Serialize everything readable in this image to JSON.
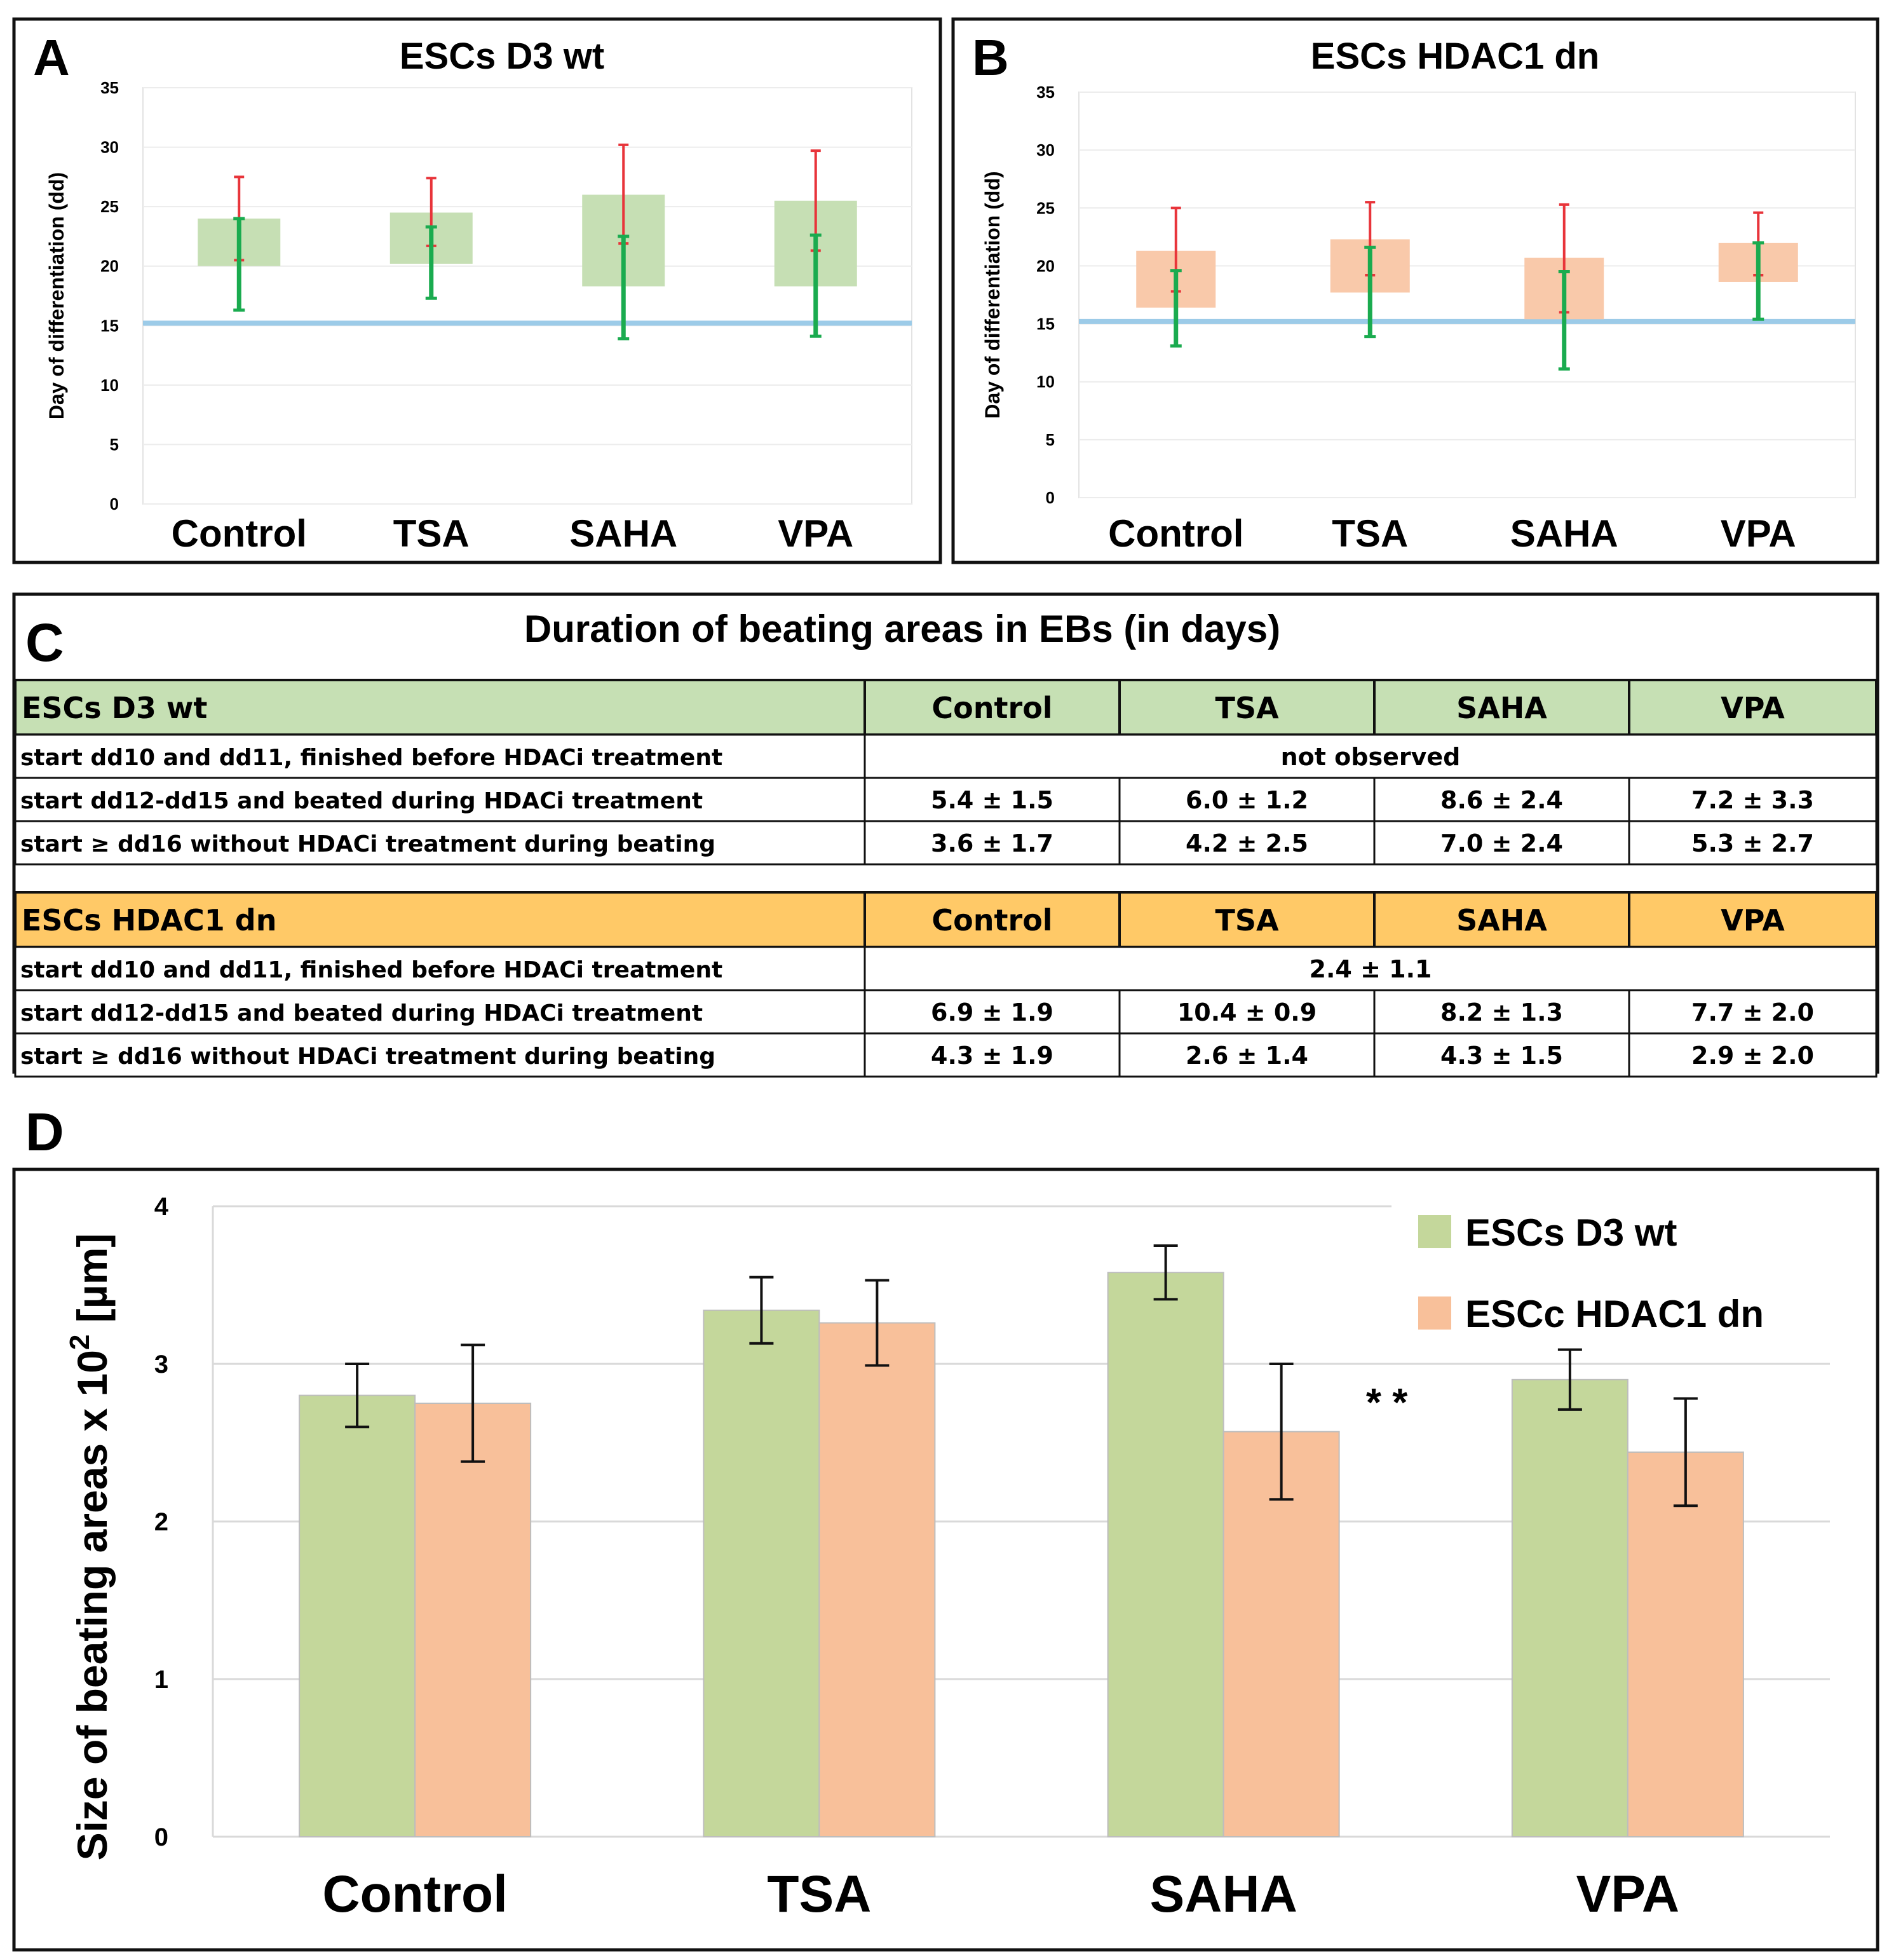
{
  "colors": {
    "wt_box": "#c6dfb4",
    "dn_box": "#f9c9aa",
    "red_bar": "#e8343a",
    "green_bar": "#1aab4f",
    "baseline": "#9ccbe8",
    "bar_wt": "#c4d79b",
    "bar_dn": "#f8c09a",
    "header_wt": "#c6e0b4",
    "header_dn": "#ffc967",
    "grid": "#d9d9d9"
  },
  "panels": {
    "a": {
      "letter": "A"
    },
    "b": {
      "letter": "B"
    },
    "c": {
      "letter": "C"
    },
    "d": {
      "letter": "D"
    }
  },
  "chart_data": [
    {
      "panel": "A",
      "type": "boxplot",
      "title": "ESCs D3 wt",
      "ylabel": "Day of differentiation (dd)",
      "ylim": [
        0,
        35
      ],
      "yticks": [
        "0",
        "5",
        "10",
        "15",
        "20",
        "25",
        "30",
        "35"
      ],
      "categories": [
        "Control",
        "TSA",
        "SAHA",
        "VPA"
      ],
      "reference_line": 15.2,
      "boxes": [
        {
          "low": 20,
          "high": 24,
          "red_from": 20.5,
          "red_to": 27.5,
          "green_from": 16.3,
          "green_to": 24
        },
        {
          "low": 20.2,
          "high": 24.5,
          "red_from": 21.7,
          "red_to": 27.4,
          "green_from": 17.3,
          "green_to": 23.3
        },
        {
          "low": 18.3,
          "high": 26,
          "red_from": 21.9,
          "red_to": 30.2,
          "green_from": 13.9,
          "green_to": 22.5
        },
        {
          "low": 18.3,
          "high": 25.5,
          "red_from": 21.3,
          "red_to": 29.7,
          "green_from": 14.1,
          "green_to": 22.6
        }
      ]
    },
    {
      "panel": "B",
      "type": "boxplot",
      "title": "ESCs HDAC1 dn",
      "ylabel": "Day of differentiation (dd)",
      "ylim": [
        0,
        35
      ],
      "yticks": [
        "0",
        "5",
        "10",
        "15",
        "20",
        "25",
        "30",
        "35"
      ],
      "categories": [
        "Control",
        "TSA",
        "SAHA",
        "VPA"
      ],
      "reference_line": 15.2,
      "boxes": [
        {
          "low": 16.4,
          "high": 21.3,
          "red_from": 17.8,
          "red_to": 25,
          "green_from": 13.1,
          "green_to": 19.6
        },
        {
          "low": 17.7,
          "high": 22.3,
          "red_from": 19.2,
          "red_to": 25.5,
          "green_from": 13.9,
          "green_to": 21.6
        },
        {
          "low": 15.4,
          "high": 20.7,
          "red_from": 16,
          "red_to": 25.3,
          "green_from": 11.1,
          "green_to": 19.5
        },
        {
          "low": 18.6,
          "high": 22,
          "red_from": 19.2,
          "red_to": 24.6,
          "green_from": 15.4,
          "green_to": 22
        }
      ]
    },
    {
      "panel": "D",
      "type": "bar",
      "ylabel_prefix": "Size of beating areas x 10",
      "ylabel_exp": "2",
      "ylabel_unit": " [µm]",
      "ylim": [
        0,
        4
      ],
      "yticks": [
        "0",
        "1",
        "2",
        "3",
        "4"
      ],
      "categories": [
        "Control",
        "TSA",
        "SAHA",
        "VPA"
      ],
      "series": [
        {
          "name": "ESCs D3 wt",
          "values": [
            2.8,
            3.34,
            3.58,
            2.9
          ],
          "errors": [
            0.2,
            0.21,
            0.17,
            0.19
          ]
        },
        {
          "name": "ESCc HDAC1 dn",
          "values": [
            2.75,
            3.26,
            2.57,
            2.44
          ],
          "errors": [
            0.37,
            0.27,
            0.43,
            0.34
          ]
        }
      ],
      "annotation": "* *"
    }
  ],
  "table": {
    "title": "Duration of beating areas in EBs (in days)",
    "groups": [
      {
        "name": "ESCs D3 wt",
        "columns": [
          "Control",
          "TSA",
          "SAHA",
          "VPA"
        ],
        "rows": [
          {
            "label": "start dd10 and dd11, finished before HDACi treatment",
            "merged": "not observed"
          },
          {
            "label": "start dd12-dd15 and beated during HDACi treatment",
            "cells": [
              "5.4 ± 1.5",
              "6.0 ± 1.2",
              "8.6 ± 2.4",
              "7.2 ± 3.3"
            ]
          },
          {
            "label": "start ≥ dd16 without HDACi treatment during beating",
            "cells": [
              "3.6 ± 1.7",
              "4.2 ± 2.5",
              "7.0 ± 2.4",
              "5.3 ± 2.7"
            ]
          }
        ]
      },
      {
        "name": "ESCs HDAC1 dn",
        "columns": [
          "Control",
          "TSA",
          "SAHA",
          "VPA"
        ],
        "rows": [
          {
            "label": "start dd10 and dd11, finished before HDACi treatment",
            "merged": "2.4 ± 1.1"
          },
          {
            "label": "start dd12-dd15 and beated during HDACi treatment",
            "cells": [
              "6.9 ± 1.9",
              "10.4 ± 0.9",
              "8.2 ± 1.3",
              "7.7 ± 2.0"
            ]
          },
          {
            "label": "start ≥ dd16 without HDACi treatment during beating",
            "cells": [
              "4.3 ± 1.9",
              "2.6 ± 1.4",
              "4.3 ± 1.5",
              "2.9 ± 2.0"
            ]
          }
        ]
      }
    ]
  }
}
